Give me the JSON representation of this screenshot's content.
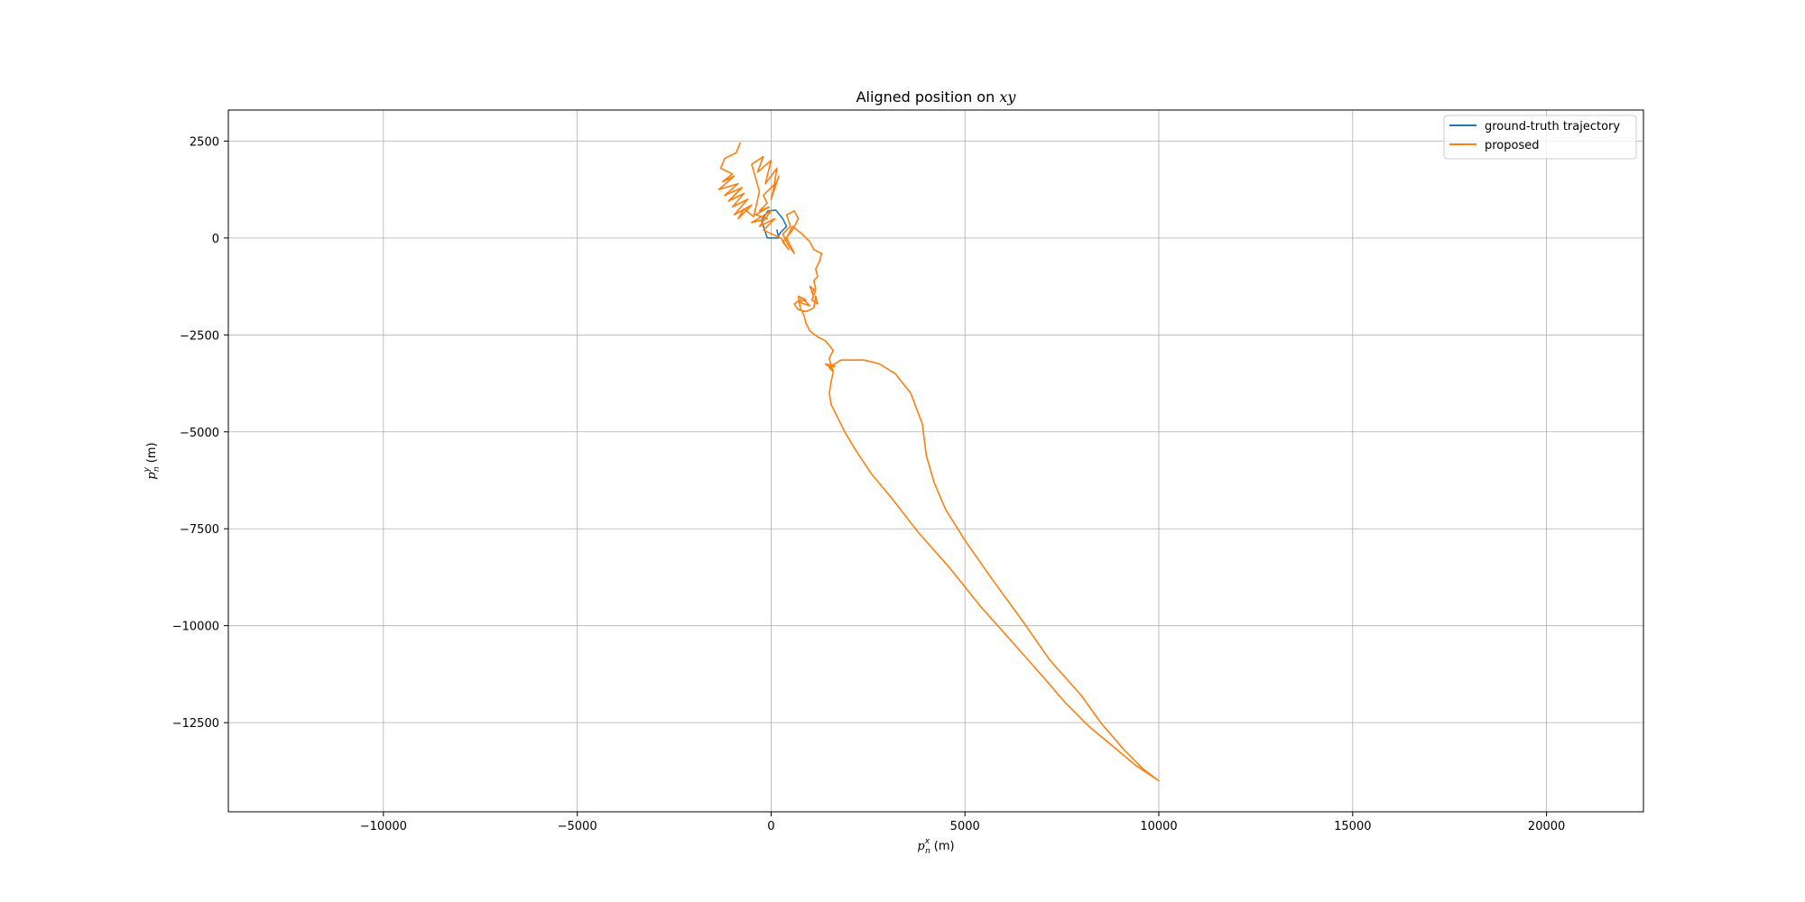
{
  "chart_data": {
    "type": "line",
    "title": "Aligned position on xy",
    "title_parts": {
      "prefix": "Aligned position on ",
      "math": "xy"
    },
    "xlabel": {
      "base": "p",
      "sub": "n",
      "sup": "x",
      "unit": "(m)"
    },
    "ylabel": {
      "base": "p",
      "sub": "n",
      "sup": "y",
      "unit": "(m)"
    },
    "xlim": [
      -14000,
      22500
    ],
    "ylim": [
      -14800,
      3300
    ],
    "xticks": [
      -10000,
      -5000,
      0,
      5000,
      10000,
      15000,
      20000
    ],
    "xtick_labels": [
      "−10000",
      "−5000",
      "0",
      "5000",
      "10000",
      "15000",
      "20000"
    ],
    "yticks": [
      2500,
      0,
      -2500,
      -5000,
      -7500,
      -10000,
      -12500
    ],
    "ytick_labels": [
      "2500",
      "0",
      "−2500",
      "−5000",
      "−7500",
      "−10000",
      "−12500"
    ],
    "grid": true,
    "legend_position": "top-right",
    "series": [
      {
        "name": "ground-truth trajectory",
        "color": "#1f77b4",
        "x": [
          -100,
          150,
          250,
          400,
          300,
          120,
          -80,
          -250,
          -180,
          -100,
          200,
          150
        ],
        "y": [
          0,
          0,
          150,
          300,
          500,
          720,
          700,
          450,
          250,
          0,
          0,
          200
        ]
      },
      {
        "name": "proposed",
        "color": "#ff7f0e",
        "x": [
          -800,
          -900,
          -1200,
          -1300,
          -1000,
          -1250,
          -950,
          -1350,
          -850,
          -1200,
          -750,
          -1100,
          -700,
          -1000,
          -600,
          -950,
          -500,
          -850,
          -700,
          -450,
          -300,
          -500,
          -200,
          -350,
          0,
          -150,
          150,
          50,
          200,
          0,
          100,
          -200,
          -100,
          -300,
          -50,
          -400,
          -100,
          -500,
          0,
          -300,
          100,
          -200,
          250,
          450,
          300,
          550,
          700,
          600,
          400,
          500,
          300,
          450,
          600,
          400,
          550,
          800,
          1000,
          1100,
          1300,
          1250,
          1150,
          1200,
          1100,
          1150,
          1050,
          1100,
          1000,
          1150,
          1050,
          1200,
          1150,
          1100,
          900,
          700,
          600,
          800,
          1000,
          700,
          900,
          700,
          750,
          850,
          900,
          1000,
          1200,
          1400,
          1600,
          1500,
          1550,
          1800,
          2400,
          2800,
          3200,
          3600,
          3900,
          4000,
          4200,
          4500,
          5000,
          5700,
          6500,
          7200,
          8000,
          8500,
          9100,
          9600,
          10000,
          9400,
          8800,
          8200,
          7600,
          7000,
          6200,
          5400,
          4600,
          3800,
          3100,
          2600,
          2200,
          1900,
          1700,
          1550,
          1500,
          1550,
          1600,
          1500,
          1650,
          1400,
          1600,
          1500
        ],
        "y": [
          2450,
          2200,
          2050,
          1800,
          1650,
          1450,
          1600,
          1250,
          1400,
          1100,
          1300,
          950,
          1150,
          800,
          1000,
          600,
          850,
          500,
          750,
          550,
          1200,
          1900,
          2100,
          1700,
          2000,
          1400,
          1800,
          1200,
          1600,
          1000,
          1400,
          1100,
          900,
          700,
          800,
          600,
          500,
          400,
          700,
          300,
          500,
          200,
          0,
          -300,
          -100,
          200,
          500,
          700,
          600,
          300,
          100,
          -200,
          -400,
          0,
          300,
          100,
          -100,
          -300,
          -400,
          -600,
          -800,
          -1000,
          -1100,
          -1300,
          -1400,
          -1500,
          -1250,
          -1350,
          -1600,
          -1700,
          -1500,
          -1800,
          -1900,
          -1850,
          -1700,
          -1550,
          -1750,
          -1650,
          -1600,
          -1500,
          -1800,
          -2000,
          -2200,
          -2400,
          -2550,
          -2650,
          -2900,
          -3100,
          -3300,
          -3150,
          -3150,
          -3250,
          -3500,
          -4000,
          -4800,
          -5600,
          -6300,
          -7000,
          -7800,
          -8800,
          -9900,
          -10900,
          -11800,
          -12500,
          -13200,
          -13700,
          -14000,
          -13600,
          -13100,
          -12600,
          -12000,
          -11300,
          -10400,
          -9500,
          -8500,
          -7600,
          -6700,
          -6100,
          -5500,
          -5000,
          -4600,
          -4300,
          -4000,
          -3700,
          -3450,
          -3350,
          -3300,
          -3250,
          -3400,
          -3300
        ]
      }
    ]
  }
}
